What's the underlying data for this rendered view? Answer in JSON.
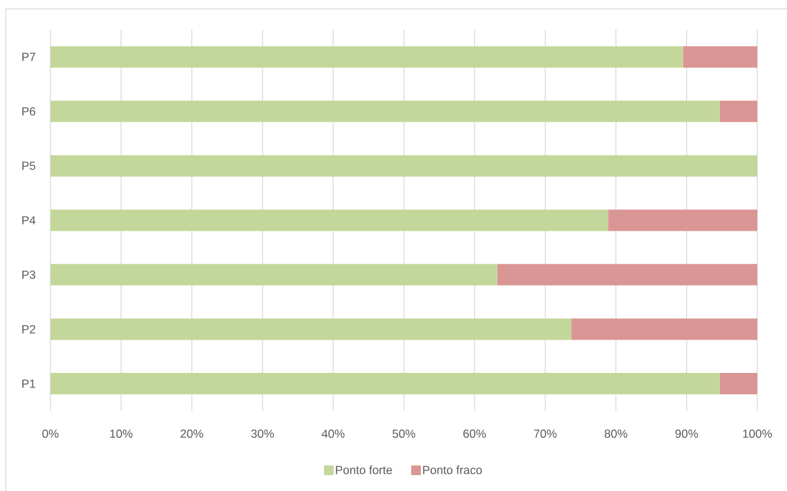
{
  "chart_data": {
    "type": "bar",
    "orientation": "horizontal",
    "stacked": true,
    "categories": [
      "P7",
      "P6",
      "P5",
      "P4",
      "P3",
      "P2",
      "P1"
    ],
    "series": [
      {
        "name": "Ponto forte",
        "color": "#c4d79b",
        "values": [
          89.5,
          94.7,
          100,
          78.9,
          63.2,
          73.7,
          94.7
        ]
      },
      {
        "name": "Ponto fraco",
        "color": "#da9694",
        "values": [
          10.5,
          5.3,
          0,
          21.1,
          36.8,
          26.3,
          5.3
        ]
      }
    ],
    "xlim": [
      0,
      100
    ],
    "xticks": [
      {
        "value": 0,
        "label": "0%"
      },
      {
        "value": 10,
        "label": "10%"
      },
      {
        "value": 20,
        "label": "20%"
      },
      {
        "value": 30,
        "label": "30%"
      },
      {
        "value": 40,
        "label": "40%"
      },
      {
        "value": 50,
        "label": "50%"
      },
      {
        "value": 60,
        "label": "60%"
      },
      {
        "value": 70,
        "label": "70%"
      },
      {
        "value": 80,
        "label": "80%"
      },
      {
        "value": 90,
        "label": "90%"
      },
      {
        "value": 100,
        "label": "100%"
      }
    ],
    "grid": "x",
    "legend": "bottom"
  }
}
